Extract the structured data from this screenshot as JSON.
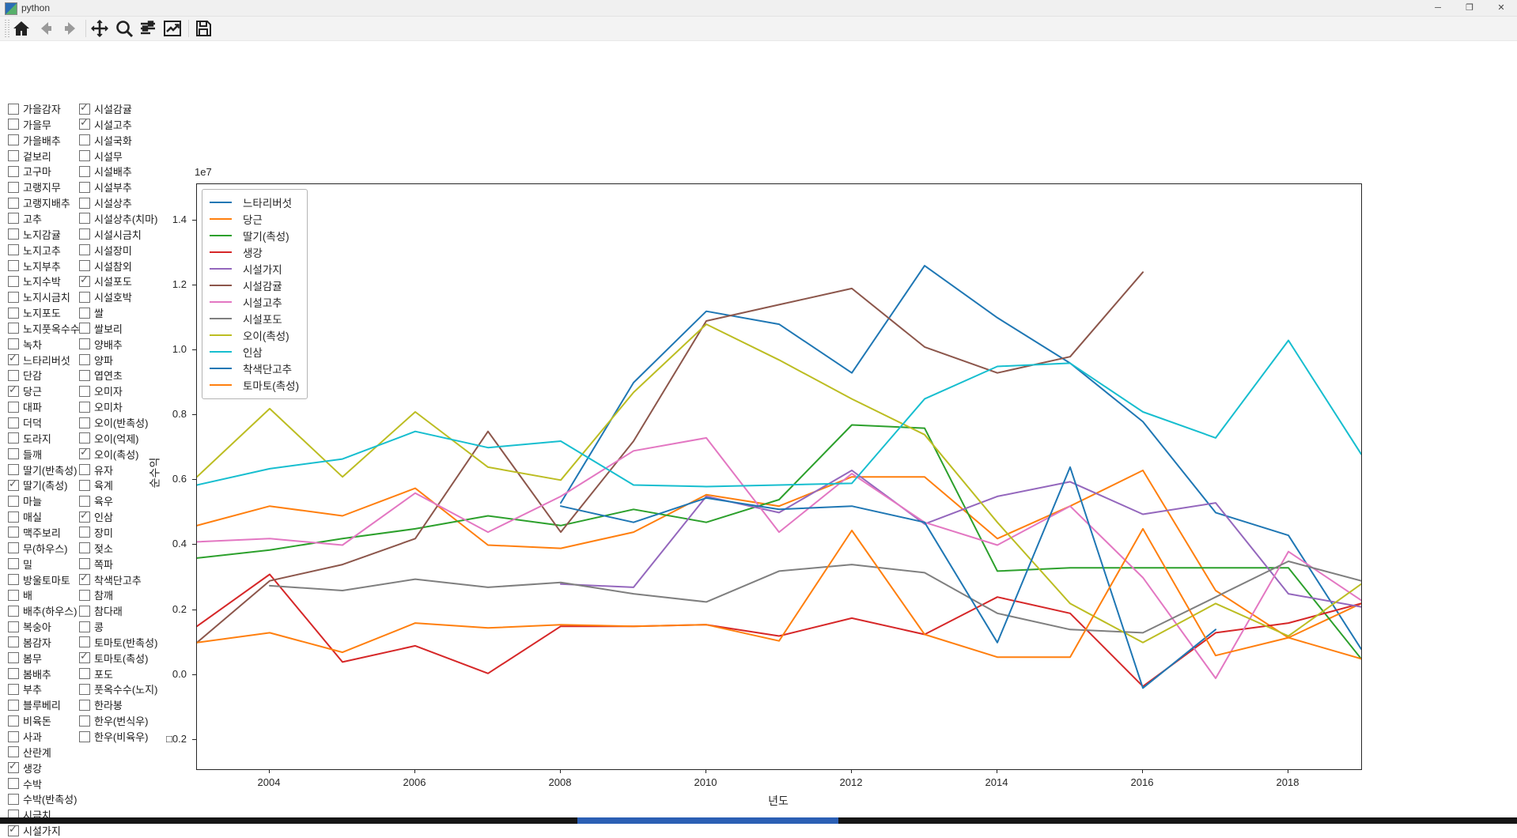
{
  "window": {
    "title": "python",
    "controls": {
      "minimize": "─",
      "maximize": "❐",
      "close": "✕"
    }
  },
  "toolbar": {
    "icons": [
      "home",
      "back",
      "forward",
      "pan",
      "zoom",
      "configure-subplots",
      "edit-parameters",
      "save"
    ]
  },
  "sidebar": {
    "columns": [
      {
        "items": [
          {
            "label": "가을감자",
            "checked": false
          },
          {
            "label": "가을무",
            "checked": false
          },
          {
            "label": "가을배추",
            "checked": false
          },
          {
            "label": "겉보리",
            "checked": false
          },
          {
            "label": "고구마",
            "checked": false
          },
          {
            "label": "고랭지무",
            "checked": false
          },
          {
            "label": "고랭지배추",
            "checked": false
          },
          {
            "label": "고추",
            "checked": false
          },
          {
            "label": "노지감귤",
            "checked": false
          },
          {
            "label": "노지고추",
            "checked": false
          },
          {
            "label": "노지부추",
            "checked": false
          },
          {
            "label": "노지수박",
            "checked": false
          },
          {
            "label": "노지시금치",
            "checked": false
          },
          {
            "label": "노지포도",
            "checked": false
          },
          {
            "label": "노지풋옥수수",
            "checked": false
          },
          {
            "label": "녹차",
            "checked": false
          },
          {
            "label": "느타리버섯",
            "checked": true
          },
          {
            "label": "단감",
            "checked": false
          },
          {
            "label": "당근",
            "checked": true
          },
          {
            "label": "대파",
            "checked": false
          },
          {
            "label": "더덕",
            "checked": false
          },
          {
            "label": "도라지",
            "checked": false
          },
          {
            "label": "들깨",
            "checked": false
          },
          {
            "label": "딸기(반촉성)",
            "checked": false
          },
          {
            "label": "딸기(촉성)",
            "checked": true
          },
          {
            "label": "마늘",
            "checked": false
          },
          {
            "label": "매실",
            "checked": false
          },
          {
            "label": "맥주보리",
            "checked": false
          },
          {
            "label": "무(하우스)",
            "checked": false
          },
          {
            "label": "밀",
            "checked": false
          },
          {
            "label": "방울토마토",
            "checked": false
          },
          {
            "label": "배",
            "checked": false
          },
          {
            "label": "배추(하우스)",
            "checked": false
          },
          {
            "label": "복숭아",
            "checked": false
          },
          {
            "label": "봄감자",
            "checked": false
          },
          {
            "label": "봄무",
            "checked": false
          },
          {
            "label": "봄배추",
            "checked": false
          },
          {
            "label": "부추",
            "checked": false
          },
          {
            "label": "블루베리",
            "checked": false
          },
          {
            "label": "비육돈",
            "checked": false
          },
          {
            "label": "사과",
            "checked": false
          },
          {
            "label": "산란계",
            "checked": false
          },
          {
            "label": "생강",
            "checked": true
          },
          {
            "label": "수박",
            "checked": false
          },
          {
            "label": "수박(반촉성)",
            "checked": false
          },
          {
            "label": "시금치",
            "checked": false
          },
          {
            "label": "시설가지",
            "checked": true
          }
        ]
      },
      {
        "items": [
          {
            "label": "시설감귤",
            "checked": true
          },
          {
            "label": "시설고추",
            "checked": true
          },
          {
            "label": "시설국화",
            "checked": false
          },
          {
            "label": "시설무",
            "checked": false
          },
          {
            "label": "시설배추",
            "checked": false
          },
          {
            "label": "시설부추",
            "checked": false
          },
          {
            "label": "시설상추",
            "checked": false
          },
          {
            "label": "시설상추(치마)",
            "checked": false
          },
          {
            "label": "시설시금치",
            "checked": false
          },
          {
            "label": "시설장미",
            "checked": false
          },
          {
            "label": "시설참외",
            "checked": false
          },
          {
            "label": "시설포도",
            "checked": true
          },
          {
            "label": "시설호박",
            "checked": false
          },
          {
            "label": "쌀",
            "checked": false
          },
          {
            "label": "쌀보리",
            "checked": false
          },
          {
            "label": "양배추",
            "checked": false
          },
          {
            "label": "양파",
            "checked": false
          },
          {
            "label": "엽연초",
            "checked": false
          },
          {
            "label": "오미자",
            "checked": false
          },
          {
            "label": "오미차",
            "checked": false
          },
          {
            "label": "오이(반촉성)",
            "checked": false
          },
          {
            "label": "오이(억제)",
            "checked": false
          },
          {
            "label": "오이(촉성)",
            "checked": true
          },
          {
            "label": "유자",
            "checked": false
          },
          {
            "label": "육계",
            "checked": false
          },
          {
            "label": "육우",
            "checked": false
          },
          {
            "label": "인삼",
            "checked": true
          },
          {
            "label": "장미",
            "checked": false
          },
          {
            "label": "젖소",
            "checked": false
          },
          {
            "label": "쪽파",
            "checked": false
          },
          {
            "label": "착색단고추",
            "checked": true
          },
          {
            "label": "참깨",
            "checked": false
          },
          {
            "label": "참다래",
            "checked": false
          },
          {
            "label": "콩",
            "checked": false
          },
          {
            "label": "토마토(반촉성)",
            "checked": false
          },
          {
            "label": "토마토(촉성)",
            "checked": true
          },
          {
            "label": "포도",
            "checked": false
          },
          {
            "label": "풋옥수수(노지)",
            "checked": false
          },
          {
            "label": "한라봉",
            "checked": false
          },
          {
            "label": "한우(번식우)",
            "checked": false
          },
          {
            "label": "한우(비육우)",
            "checked": false
          }
        ]
      }
    ]
  },
  "chart_data": {
    "type": "line",
    "xlabel": "년도",
    "ylabel": "순수익",
    "offset_text": "1e7",
    "value_unit": "1e7",
    "xlim": [
      2003,
      2019
    ],
    "ylim": [
      -0.29,
      1.511
    ],
    "xticks": [
      2004,
      2006,
      2008,
      2010,
      2012,
      2014,
      2016,
      2018
    ],
    "yticks": [
      {
        "v": 1.4,
        "label": "1.4"
      },
      {
        "v": 1.2,
        "label": "1.2"
      },
      {
        "v": 1.0,
        "label": "1.0"
      },
      {
        "v": 0.8,
        "label": "0.8"
      },
      {
        "v": 0.6,
        "label": "0.6"
      },
      {
        "v": 0.4,
        "label": "0.4"
      },
      {
        "v": 0.2,
        "label": "0.2"
      },
      {
        "v": 0.0,
        "label": "0.0"
      },
      {
        "v": -0.2,
        "label": "□0.2"
      }
    ],
    "grid": false,
    "legend_position": "upper left",
    "series": [
      {
        "name": "느타리버섯",
        "color": "#1f77b4",
        "start_year": 2008,
        "values": [
          0.53,
          0.9,
          1.12,
          1.08,
          0.93,
          1.26,
          1.1,
          0.96,
          0.78,
          0.5,
          0.43,
          0.08
        ]
      },
      {
        "name": "당근",
        "color": "#ff7f0e",
        "start_year": 2003,
        "values": [
          0.46,
          0.52,
          0.49,
          0.575,
          0.4,
          0.39,
          0.44,
          0.555,
          0.52,
          0.61,
          0.61,
          0.42,
          0.52,
          0.63,
          0.26,
          0.115,
          0.22
        ]
      },
      {
        "name": "딸기(촉성)",
        "color": "#2ca02c",
        "start_year": 2003,
        "values": [
          0.36,
          0.385,
          0.42,
          0.45,
          0.49,
          0.46,
          0.51,
          0.47,
          0.54,
          0.77,
          0.76,
          0.32,
          0.33,
          0.33,
          0.33,
          0.33,
          0.05
        ]
      },
      {
        "name": "생강",
        "color": "#d62728",
        "start_year": 2003,
        "values": [
          0.15,
          0.31,
          0.04,
          0.09,
          0.005,
          0.15,
          0.15,
          0.155,
          0.12,
          0.175,
          0.125,
          0.24,
          0.19,
          -0.035,
          0.13,
          0.16,
          0.22
        ]
      },
      {
        "name": "시설가지",
        "color": "#9467bd",
        "start_year": 2008,
        "values": [
          0.28,
          0.27,
          0.55,
          0.5,
          0.63,
          0.465,
          0.55,
          0.595,
          0.495,
          0.53,
          0.25,
          0.21
        ]
      },
      {
        "name": "시설감귤",
        "color": "#8c564b",
        "start_year": 2003,
        "values": [
          0.1,
          0.29,
          0.34,
          0.42,
          0.75,
          0.44,
          0.72,
          1.09,
          1.14,
          1.19,
          1.01,
          0.93,
          0.98,
          1.24
        ]
      },
      {
        "name": "시설고추",
        "color": "#e377c2",
        "start_year": 2003,
        "values": [
          0.41,
          0.42,
          0.4,
          0.56,
          0.44,
          0.55,
          0.69,
          0.73,
          0.44,
          0.62,
          0.47,
          0.4,
          0.52,
          0.3,
          -0.01,
          0.38,
          0.23
        ]
      },
      {
        "name": "시설포도",
        "color": "#7f7f7f",
        "start_year": 2004,
        "values": [
          0.275,
          0.26,
          0.295,
          0.27,
          0.285,
          0.25,
          0.225,
          0.32,
          0.34,
          0.315,
          0.19,
          0.14,
          0.13,
          0.24,
          0.35,
          0.29
        ]
      },
      {
        "name": "오이(촉성)",
        "color": "#bcbd22",
        "start_year": 2003,
        "values": [
          0.61,
          0.82,
          0.61,
          0.81,
          0.64,
          0.6,
          0.87,
          1.08,
          0.97,
          0.85,
          0.74,
          0.47,
          0.22,
          0.1,
          0.22,
          0.12,
          0.28
        ]
      },
      {
        "name": "인삼",
        "color": "#17becf",
        "start_year": 2003,
        "values": [
          0.585,
          0.635,
          0.665,
          0.75,
          0.7,
          0.72,
          0.585,
          0.58,
          0.585,
          0.59,
          0.85,
          0.95,
          0.96,
          0.81,
          0.73,
          1.03,
          0.68
        ]
      },
      {
        "name": "착색단고추",
        "color": "#1f77b4",
        "start_year": 2008,
        "values": [
          0.52,
          0.47,
          0.545,
          0.51,
          0.52,
          0.47,
          0.1,
          0.64,
          -0.04,
          0.14
        ]
      },
      {
        "name": "토마토(촉성)",
        "color": "#ff7f0e",
        "start_year": 2003,
        "values": [
          0.1,
          0.13,
          0.07,
          0.16,
          0.145,
          0.155,
          0.15,
          0.155,
          0.105,
          0.445,
          0.125,
          0.055,
          0.055,
          0.45,
          0.06,
          0.115,
          0.05
        ]
      }
    ]
  }
}
